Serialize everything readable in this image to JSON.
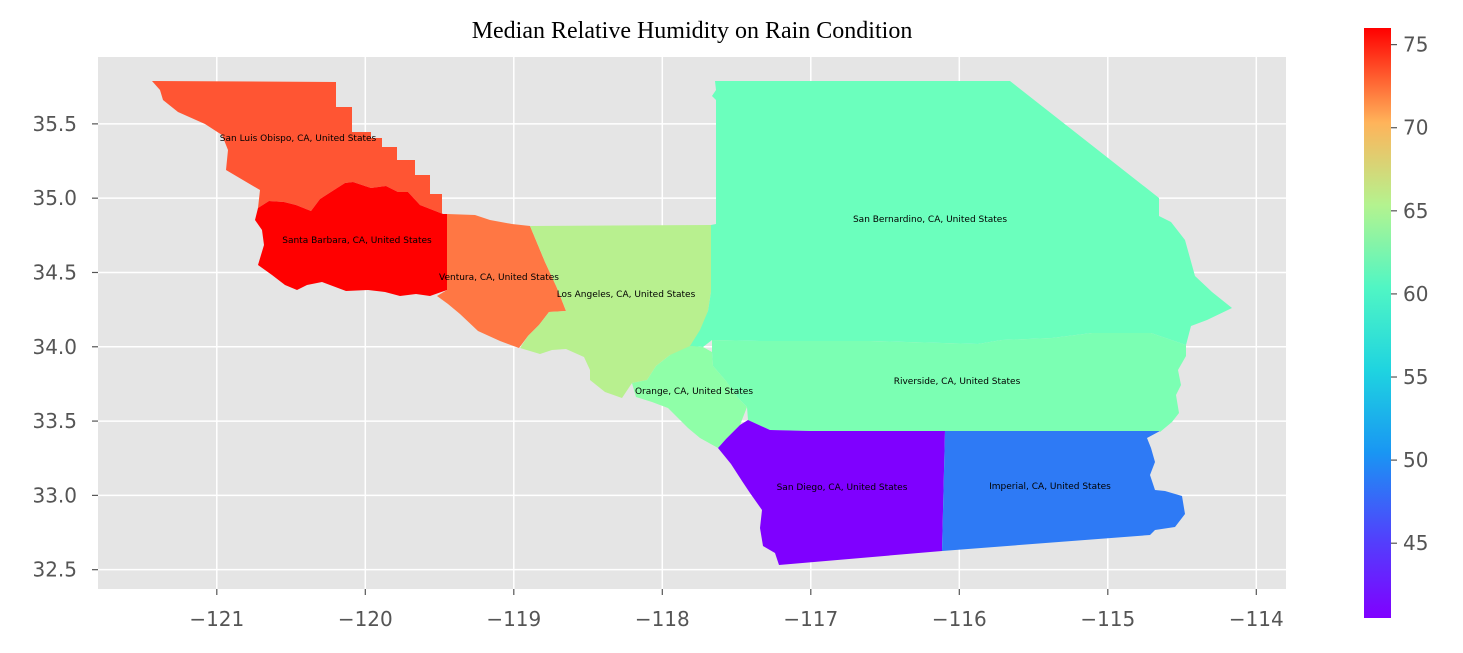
{
  "chart_data": {
    "type": "choropleth",
    "title": "Median Relative Humidity on Rain Condition",
    "xlabel": "",
    "ylabel": "",
    "xlim": [
      -121.8,
      -113.8
    ],
    "ylim": [
      32.37,
      35.95
    ],
    "x_ticks": [
      -121,
      -120,
      -119,
      -118,
      -117,
      -116,
      -115,
      -114
    ],
    "x_tick_labels": [
      "−121",
      "−120",
      "−119",
      "−118",
      "−117",
      "−116",
      "−115",
      "−114"
    ],
    "y_ticks": [
      32.5,
      33.0,
      33.5,
      34.0,
      34.5,
      35.0,
      35.5
    ],
    "y_tick_labels": [
      "32.5",
      "33.0",
      "33.5",
      "34.0",
      "34.5",
      "35.0",
      "35.5"
    ],
    "grid": true,
    "colormap": "rainbow",
    "colorbar": {
      "min": 40.5,
      "max": 76,
      "ticks": [
        45,
        50,
        55,
        60,
        65,
        70,
        75
      ],
      "tick_labels": [
        "45",
        "50",
        "55",
        "60",
        "65",
        "70",
        "75"
      ]
    },
    "regions": [
      {
        "name": "San Luis Obispo, CA, United States",
        "value": 72,
        "color": "#ff5533"
      },
      {
        "name": "Santa Barbara, CA, United States",
        "value": 76,
        "color": "#ff0000"
      },
      {
        "name": "Ventura, CA, United States",
        "value": 70,
        "color": "#ff7744"
      },
      {
        "name": "Los Angeles, CA, United States",
        "value": 62,
        "color": "#b8f08f"
      },
      {
        "name": "San Bernardino, CA, United States",
        "value": 57,
        "color": "#6bffbd"
      },
      {
        "name": "Orange, CA, United States",
        "value": 59,
        "color": "#8fffa8"
      },
      {
        "name": "Riverside, CA, United States",
        "value": 59,
        "color": "#7bffb3"
      },
      {
        "name": "San Diego, CA, United States",
        "value": 40.5,
        "color": "#7f00ff"
      },
      {
        "name": "Imperial, CA, United States",
        "value": 45,
        "color": "#2e7af5"
      }
    ]
  },
  "colors": {
    "background": "#e5e5e5",
    "grid": "#ffffff"
  }
}
